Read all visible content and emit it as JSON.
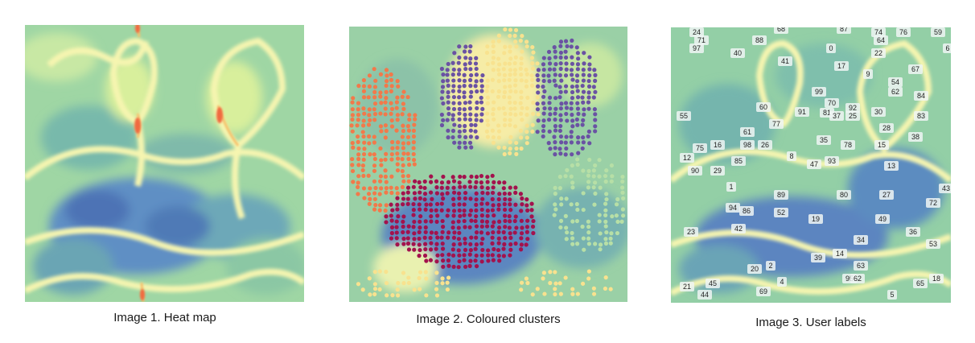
{
  "captions": {
    "heat_map": "Image 1. Heat map",
    "clusters": "Image 2. Coloured clusters",
    "user_labels": "Image 3. User labels"
  },
  "colors": {
    "low": "#3b5fae",
    "mid_low": "#67b5a5",
    "mid": "#c2e4a0",
    "high": "#f6f5b4",
    "ridge": "#fdd47a",
    "peak": "#f46d43",
    "cluster_purple": "#6a52a3",
    "cluster_crimson": "#a3124d",
    "cluster_orange": "#f2794a",
    "cluster_yellow": "#f8e28f",
    "cluster_green": "#b7dfa6"
  },
  "user_labels": [
    "24",
    "71",
    "97",
    "88",
    "68",
    "87",
    "74",
    "64",
    "76",
    "59",
    "40",
    "0",
    "22",
    "6",
    "41",
    "17",
    "9",
    "67",
    "99",
    "54",
    "62",
    "84",
    "70",
    "55",
    "60",
    "77",
    "91",
    "81",
    "37",
    "25",
    "92",
    "30",
    "83",
    "28",
    "61",
    "35",
    "78",
    "15",
    "38",
    "12",
    "75",
    "16",
    "98",
    "26",
    "85",
    "8",
    "47",
    "93",
    "13",
    "90",
    "29",
    "43",
    "1",
    "89",
    "80",
    "27",
    "72",
    "94",
    "86",
    "52",
    "19",
    "49",
    "23",
    "42",
    "36",
    "53",
    "34",
    "14",
    "39",
    "63",
    "20",
    "2",
    "69",
    "4",
    "95",
    "62",
    "65",
    "18",
    "21",
    "45",
    "44",
    "5"
  ]
}
